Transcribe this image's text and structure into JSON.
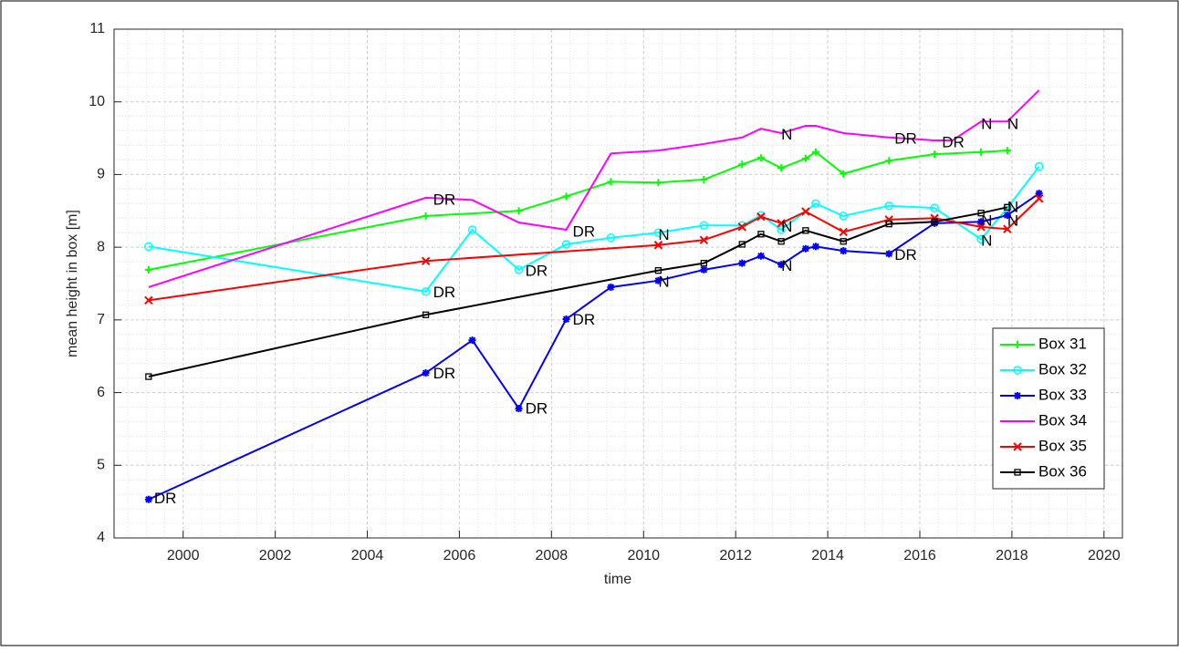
{
  "chart_data": {
    "type": "line",
    "x_label": "time",
    "y_label": "mean height in box [m]",
    "xlim": [
      1998.5,
      2020.4
    ],
    "ylim": [
      4,
      11
    ],
    "xticks": [
      2000,
      2002,
      2004,
      2006,
      2008,
      2010,
      2012,
      2014,
      2016,
      2018,
      2020
    ],
    "yticks": [
      4,
      5,
      6,
      7,
      8,
      9,
      10,
      11
    ],
    "grid": true,
    "minor_grid": true,
    "legend": "southeast",
    "series": [
      {
        "name": "Box 31",
        "color": "#00ff00",
        "marker": "plus",
        "x": [
          1999.25,
          2005.27,
          2007.29,
          2008.32,
          2009.29,
          2010.32,
          2011.31,
          2012.14,
          2012.55,
          2012.99,
          2013.52,
          2013.74,
          2014.34,
          2015.33,
          2016.32,
          2017.33,
          2017.9
        ],
        "values": [
          7.69,
          8.43,
          8.5,
          8.7,
          8.9,
          8.89,
          8.93,
          9.14,
          9.23,
          9.09,
          9.22,
          9.31,
          9.01,
          9.19,
          9.28,
          9.31,
          9.33
        ]
      },
      {
        "name": "Box 32",
        "color": "#00ffff",
        "marker": "circle",
        "x": [
          1999.25,
          2005.27,
          2006.28,
          2007.29,
          2008.32,
          2009.29,
          2010.32,
          2011.31,
          2012.14,
          2012.55,
          2012.99,
          2013.74,
          2014.34,
          2015.33,
          2016.32,
          2017.33,
          2017.9,
          2018.59
        ],
        "values": [
          8.01,
          7.39,
          8.24,
          7.69,
          8.04,
          8.13,
          8.2,
          8.3,
          8.3,
          8.44,
          8.24,
          8.6,
          8.43,
          8.57,
          8.54,
          8.11,
          8.54,
          9.11
        ]
      },
      {
        "name": "Box 33",
        "color": "#0000ff",
        "marker": "star",
        "x": [
          1999.25,
          2005.27,
          2006.28,
          2007.29,
          2008.32,
          2009.29,
          2010.32,
          2011.31,
          2012.14,
          2012.55,
          2012.99,
          2013.52,
          2013.74,
          2014.34,
          2015.33,
          2016.32,
          2017.33,
          2017.9,
          2018.59
        ],
        "values": [
          4.53,
          6.27,
          6.72,
          5.78,
          7.01,
          7.45,
          7.54,
          7.69,
          7.78,
          7.88,
          7.76,
          7.98,
          8.01,
          7.95,
          7.91,
          8.33,
          8.35,
          8.44,
          8.74
        ]
      },
      {
        "name": "Box 34",
        "color": "#ff00ff",
        "marker": "none",
        "x": [
          1999.25,
          2005.27,
          2006.28,
          2007.29,
          2008.32,
          2009.29,
          2010.32,
          2011.31,
          2012.14,
          2012.55,
          2012.99,
          2013.52,
          2013.74,
          2014.34,
          2015.33,
          2016.32,
          2016.71,
          2017.33,
          2017.9,
          2018.59
        ],
        "values": [
          7.45,
          8.68,
          8.65,
          8.34,
          8.24,
          9.29,
          9.33,
          9.42,
          9.51,
          9.63,
          9.57,
          9.67,
          9.67,
          9.57,
          9.51,
          9.47,
          9.47,
          9.73,
          9.73,
          10.16
        ]
      },
      {
        "name": "Box 35",
        "color": "#ff0000",
        "marker": "cross",
        "x": [
          1999.25,
          2005.27,
          2010.32,
          2011.31,
          2012.14,
          2012.55,
          2012.99,
          2013.52,
          2014.34,
          2015.33,
          2016.32,
          2017.33,
          2017.9,
          2018.59
        ],
        "values": [
          7.27,
          7.81,
          8.03,
          8.1,
          8.28,
          8.42,
          8.33,
          8.49,
          8.21,
          8.38,
          8.4,
          8.28,
          8.25,
          8.67
        ]
      },
      {
        "name": "Box 36",
        "color": "#000000",
        "marker": "square",
        "x": [
          1999.25,
          2005.27,
          2010.32,
          2011.31,
          2012.14,
          2012.55,
          2012.99,
          2013.52,
          2014.34,
          2015.33,
          2016.32,
          2017.33,
          2017.9
        ],
        "values": [
          6.22,
          7.07,
          7.68,
          7.78,
          8.04,
          8.18,
          8.08,
          8.23,
          8.08,
          8.32,
          8.35,
          8.47,
          8.55
        ]
      }
    ],
    "annotations": [
      {
        "text": "DR",
        "x": 2005.43,
        "y": 8.64
      },
      {
        "text": "DR",
        "x": 2005.43,
        "y": 7.37
      },
      {
        "text": "DR",
        "x": 2005.43,
        "y": 6.25
      },
      {
        "text": "DR",
        "x": 2007.43,
        "y": 5.77
      },
      {
        "text": "DR",
        "x": 2008.46,
        "y": 6.99
      },
      {
        "text": "DR",
        "x": 2007.43,
        "y": 7.66
      },
      {
        "text": "DR",
        "x": 2008.46,
        "y": 8.2
      },
      {
        "text": "N",
        "x": 2010.32,
        "y": 8.16
      },
      {
        "text": "N",
        "x": 2010.32,
        "y": 7.51
      },
      {
        "text": "N",
        "x": 2012.99,
        "y": 9.54
      },
      {
        "text": "N",
        "x": 2012.99,
        "y": 8.27
      },
      {
        "text": "N",
        "x": 2012.99,
        "y": 7.73
      },
      {
        "text": "DR",
        "x": 2015.45,
        "y": 9.48
      },
      {
        "text": "DR",
        "x": 2016.48,
        "y": 9.43
      },
      {
        "text": "DR",
        "x": 2015.45,
        "y": 7.88
      },
      {
        "text": "N",
        "x": 2017.33,
        "y": 9.68
      },
      {
        "text": "N",
        "x": 2017.9,
        "y": 9.68
      },
      {
        "text": "N",
        "x": 2017.33,
        "y": 8.35
      },
      {
        "text": "N",
        "x": 2017.33,
        "y": 8.08
      },
      {
        "text": "N",
        "x": 2017.9,
        "y": 8.54
      },
      {
        "text": "N",
        "x": 2017.9,
        "y": 8.35
      },
      {
        "text": "DR",
        "x": 1999.37,
        "y": 4.53
      }
    ]
  }
}
